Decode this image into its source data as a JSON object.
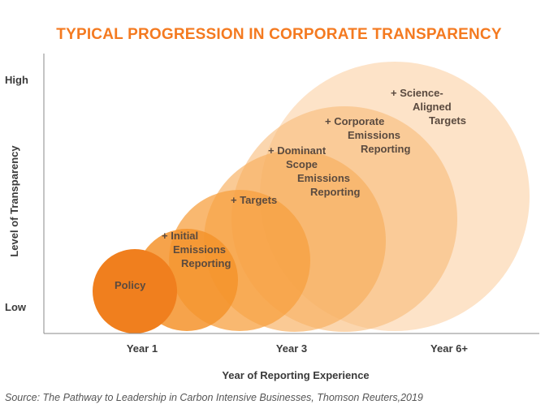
{
  "title": "TYPICAL PROGRESSION IN CORPORATE TRANSPARENCY",
  "y_axis": {
    "label": "Level of Transparency",
    "high_label": "High",
    "low_label": "Low"
  },
  "x_axis": {
    "label": "Year of Reporting Experience",
    "ticks": [
      "Year 1",
      "Year 3",
      "Year 6+"
    ]
  },
  "stages": [
    {
      "lines": [
        "Policy"
      ],
      "color": "#f07f1e",
      "opacity": 1.0
    },
    {
      "lines": [
        "+ Initial",
        "Emissions",
        "Reporting"
      ],
      "color": "#f5932c",
      "opacity": 0.85
    },
    {
      "lines": [
        "+ Targets"
      ],
      "color": "#f7a040",
      "opacity": 0.75
    },
    {
      "lines": [
        "+ Dominant",
        "Scope",
        "Emissions",
        "Reporting"
      ],
      "color": "#f8ad5c",
      "opacity": 0.65
    },
    {
      "lines": [
        "+ Corporate",
        "Emissions",
        "Reporting"
      ],
      "color": "#f9bb78",
      "opacity": 0.6
    },
    {
      "lines": [
        "+ Science-",
        "Aligned",
        "Targets"
      ],
      "color": "#fbd1a4",
      "opacity": 0.6
    }
  ],
  "source": "Source: The Pathway to Leadership in Carbon Intensive Businesses, Thomson Reuters,2019"
}
